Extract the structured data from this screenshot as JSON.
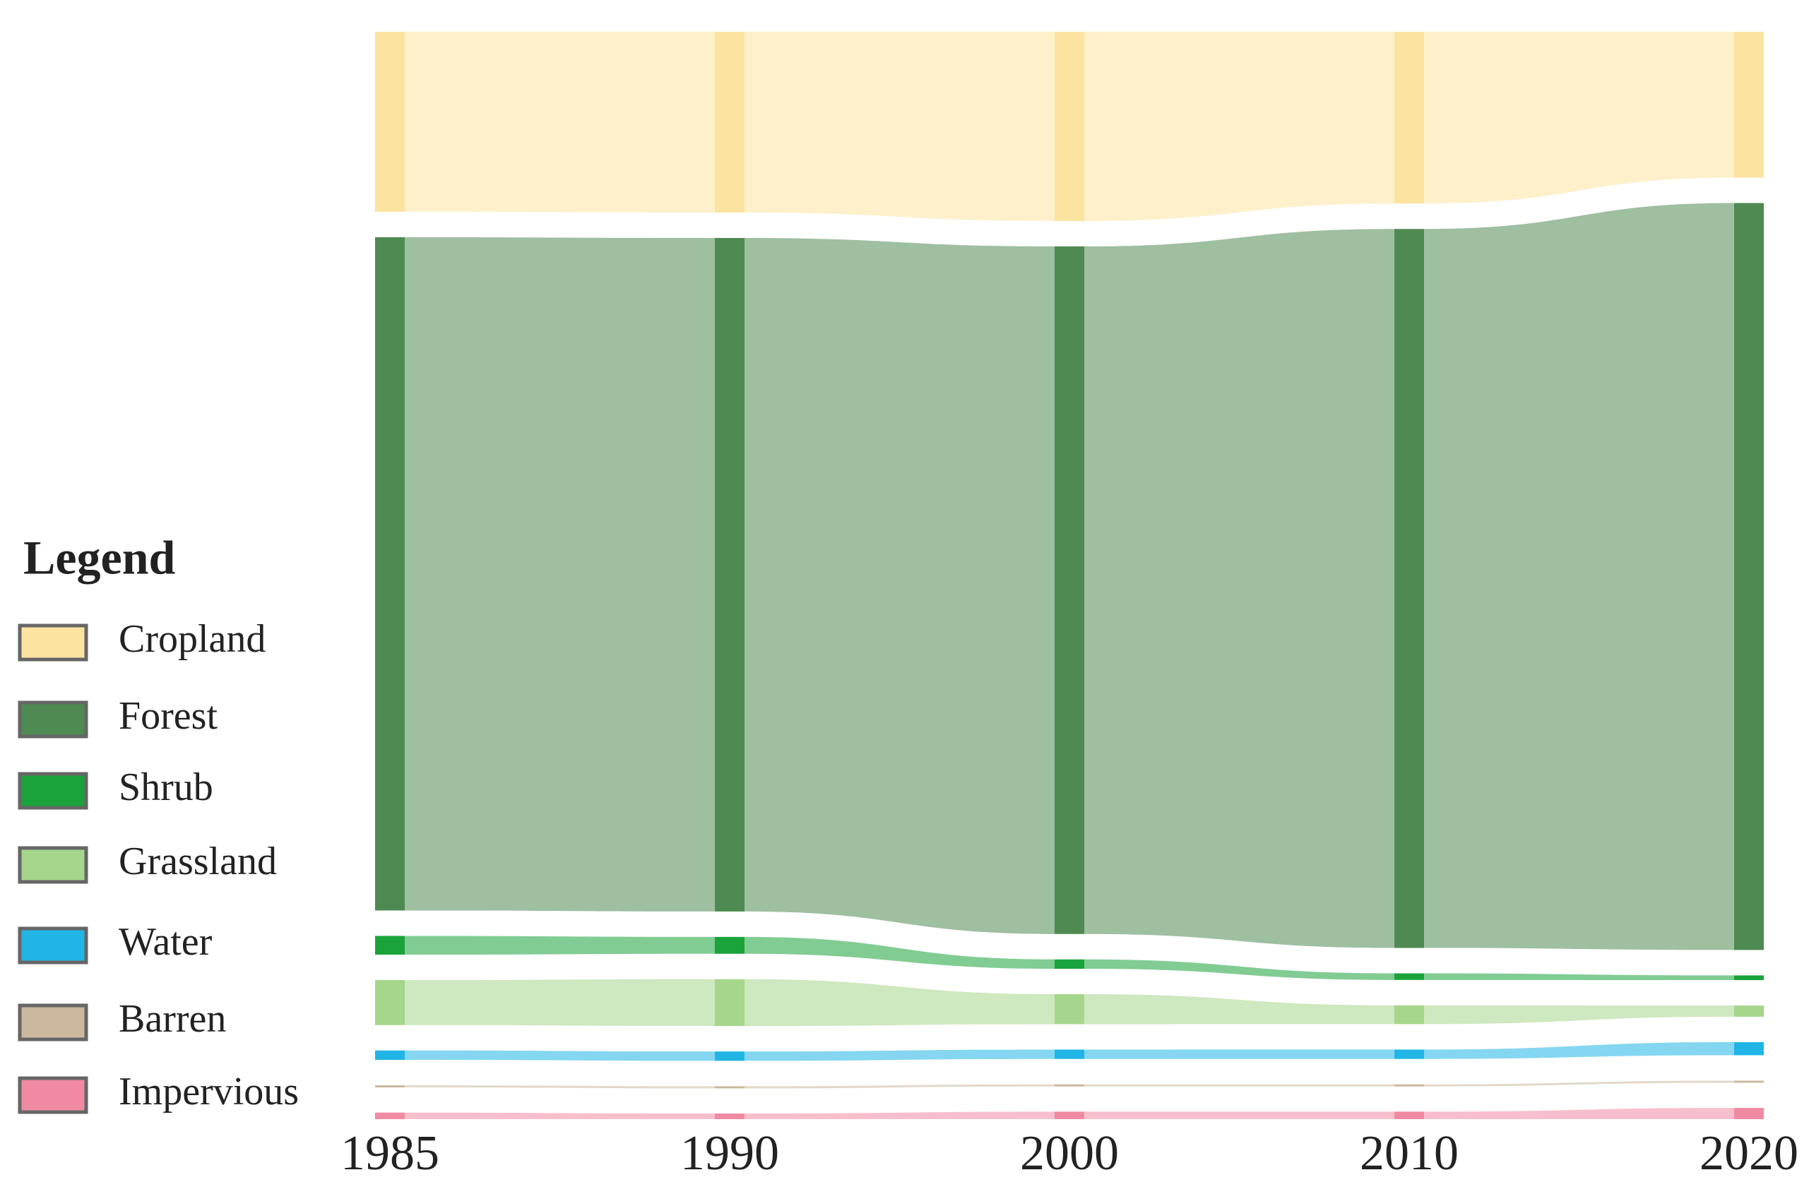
{
  "chart_data": {
    "type": "sankey",
    "legend_title": "Legend",
    "categories": [
      "1985",
      "1990",
      "2000",
      "2010",
      "2020"
    ],
    "series": [
      {
        "name": "Cropland",
        "color": "#fde3a0",
        "values": [
          19.2,
          19.3,
          20.2,
          18.3,
          15.6
        ]
      },
      {
        "name": "Forest",
        "color": "#4f8a52",
        "values": [
          71.8,
          71.9,
          73.4,
          76.6,
          79.9
        ]
      },
      {
        "name": "Shrub",
        "color": "#1aa33a",
        "values": [
          2.0,
          1.8,
          1.0,
          0.7,
          0.5
        ]
      },
      {
        "name": "Grassland",
        "color": "#a5d68b",
        "values": [
          4.8,
          5.0,
          3.2,
          2.0,
          1.2
        ]
      },
      {
        "name": "Water",
        "color": "#21b5e6",
        "values": [
          1.0,
          1.0,
          1.0,
          1.0,
          1.4
        ]
      },
      {
        "name": "Barren",
        "color": "#cbb89d",
        "values": [
          0.2,
          0.2,
          0.2,
          0.2,
          0.2
        ]
      },
      {
        "name": "Impervious",
        "color": "#f08aa3",
        "values": [
          0.7,
          0.6,
          0.8,
          0.8,
          1.2
        ]
      }
    ]
  }
}
